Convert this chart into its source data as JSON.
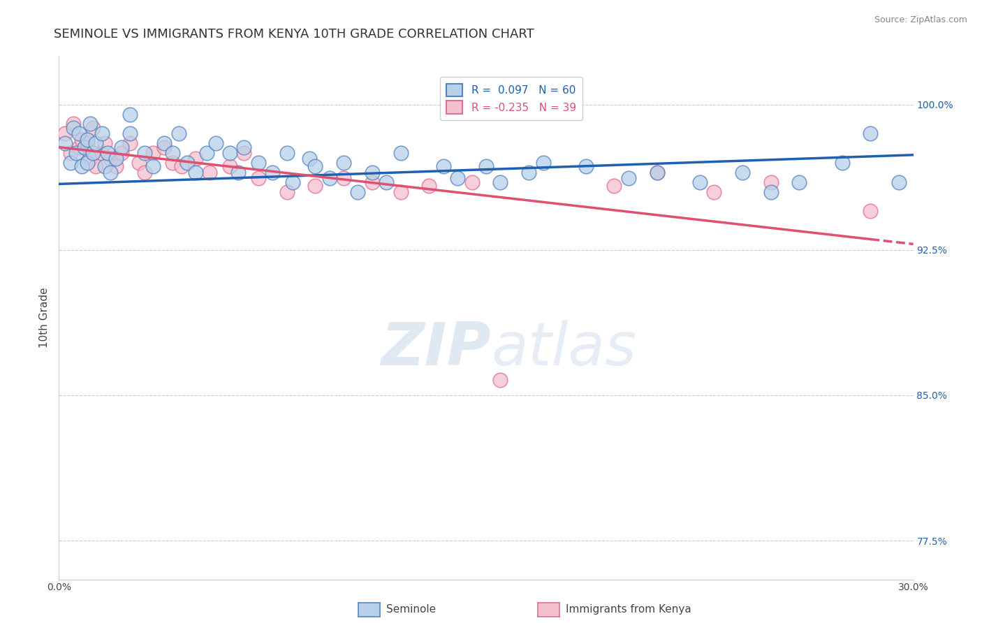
{
  "title": "SEMINOLE VS IMMIGRANTS FROM KENYA 10TH GRADE CORRELATION CHART",
  "source": "Source: ZipAtlas.com",
  "ylabel": "10th Grade",
  "legend_seminole": "Seminole",
  "legend_kenya": "Immigrants from Kenya",
  "R_seminole": 0.097,
  "N_seminole": 60,
  "R_kenya": -0.235,
  "N_kenya": 39,
  "xlim": [
    0.0,
    0.3
  ],
  "ylim": [
    0.755,
    1.025
  ],
  "yticks": [
    0.775,
    0.85,
    0.925,
    1.0
  ],
  "ytick_labels": [
    "77.5%",
    "85.0%",
    "92.5%",
    "100.0%"
  ],
  "xticks": [
    0.0,
    0.05,
    0.1,
    0.15,
    0.2,
    0.25,
    0.3
  ],
  "xtick_labels": [
    "0.0%",
    "",
    "",
    "",
    "",
    "",
    "30.0%"
  ],
  "color_seminole": "#b8d0ea",
  "color_seminole_edge": "#5585c0",
  "color_seminole_line": "#2060b0",
  "color_kenya": "#f5c0ce",
  "color_kenya_edge": "#e07090",
  "color_kenya_line": "#e05070",
  "seminole_x": [
    0.002,
    0.004,
    0.005,
    0.006,
    0.007,
    0.008,
    0.009,
    0.01,
    0.01,
    0.011,
    0.012,
    0.013,
    0.015,
    0.016,
    0.017,
    0.018,
    0.02,
    0.022,
    0.025,
    0.025,
    0.03,
    0.033,
    0.037,
    0.04,
    0.042,
    0.045,
    0.048,
    0.052,
    0.055,
    0.06,
    0.063,
    0.065,
    0.07,
    0.075,
    0.08,
    0.082,
    0.088,
    0.09,
    0.095,
    0.1,
    0.105,
    0.11,
    0.115,
    0.12,
    0.135,
    0.14,
    0.15,
    0.155,
    0.165,
    0.17,
    0.185,
    0.2,
    0.21,
    0.225,
    0.24,
    0.25,
    0.26,
    0.275,
    0.285,
    0.295
  ],
  "seminole_y": [
    0.98,
    0.97,
    0.988,
    0.975,
    0.985,
    0.968,
    0.978,
    0.982,
    0.97,
    0.99,
    0.975,
    0.98,
    0.985,
    0.968,
    0.975,
    0.965,
    0.972,
    0.978,
    0.995,
    0.985,
    0.975,
    0.968,
    0.98,
    0.975,
    0.985,
    0.97,
    0.965,
    0.975,
    0.98,
    0.975,
    0.965,
    0.978,
    0.97,
    0.965,
    0.975,
    0.96,
    0.972,
    0.968,
    0.962,
    0.97,
    0.955,
    0.965,
    0.96,
    0.975,
    0.968,
    0.962,
    0.968,
    0.96,
    0.965,
    0.97,
    0.968,
    0.962,
    0.965,
    0.96,
    0.965,
    0.955,
    0.96,
    0.97,
    0.985,
    0.96
  ],
  "kenya_x": [
    0.002,
    0.004,
    0.005,
    0.007,
    0.008,
    0.01,
    0.011,
    0.012,
    0.013,
    0.015,
    0.016,
    0.018,
    0.02,
    0.022,
    0.025,
    0.028,
    0.03,
    0.033,
    0.037,
    0.04,
    0.043,
    0.048,
    0.053,
    0.06,
    0.065,
    0.07,
    0.08,
    0.09,
    0.1,
    0.11,
    0.12,
    0.13,
    0.145,
    0.155,
    0.195,
    0.21,
    0.23,
    0.25,
    0.285
  ],
  "kenya_y": [
    0.985,
    0.975,
    0.99,
    0.978,
    0.982,
    0.98,
    0.972,
    0.988,
    0.968,
    0.975,
    0.98,
    0.972,
    0.968,
    0.975,
    0.98,
    0.97,
    0.965,
    0.975,
    0.978,
    0.97,
    0.968,
    0.972,
    0.965,
    0.968,
    0.975,
    0.962,
    0.955,
    0.958,
    0.962,
    0.96,
    0.955,
    0.958,
    0.96,
    0.858,
    0.958,
    0.965,
    0.955,
    0.96,
    0.945
  ],
  "background_color": "#ffffff",
  "grid_color": "#cccccc",
  "title_fontsize": 13,
  "axis_label_fontsize": 11,
  "tick_fontsize": 10,
  "legend_fontsize": 11,
  "trendline_seminole_x0": 0.0,
  "trendline_seminole_x1": 0.3,
  "trendline_seminole_y0": 0.959,
  "trendline_seminole_y1": 0.974,
  "trendline_kenya_x0": 0.0,
  "trendline_kenya_solid_x1": 0.285,
  "trendline_kenya_x1": 0.3,
  "trendline_kenya_y0": 0.978,
  "trendline_kenya_y1": 0.928
}
